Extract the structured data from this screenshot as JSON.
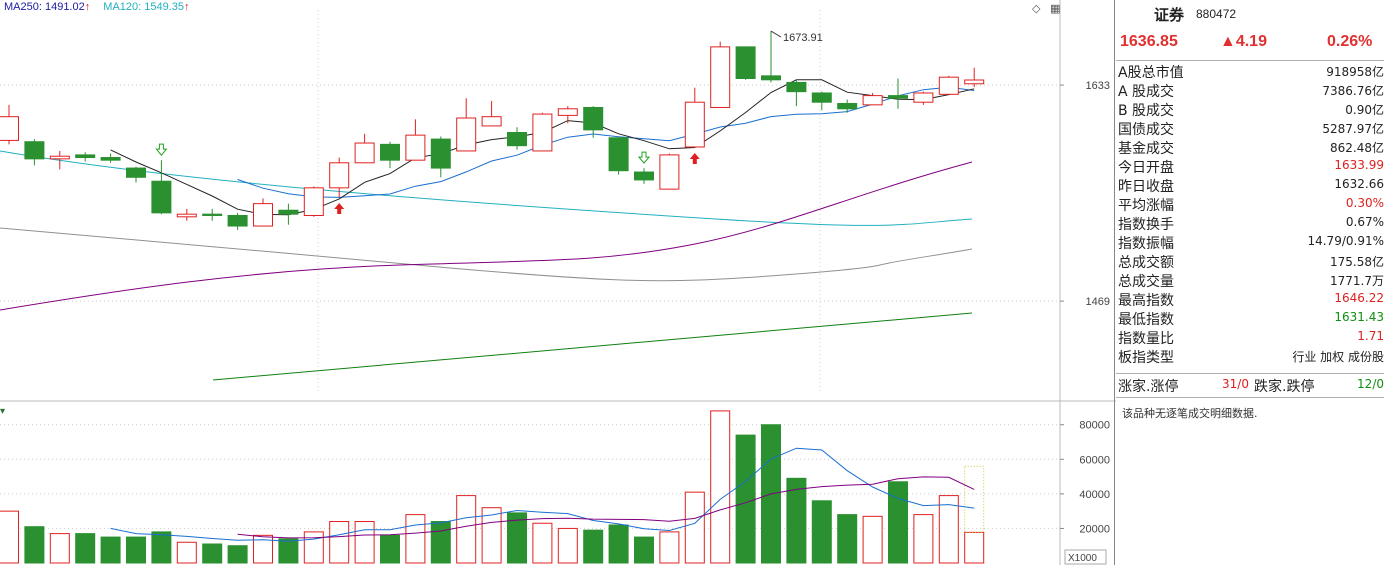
{
  "ma_legend": [
    {
      "text": "MA250: 1491.02",
      "color": "#1a1aa0"
    },
    {
      "text": "MA120: 1549.35",
      "color": "#22b0c0"
    }
  ],
  "price_axis_labels": [
    "1633",
    "1469"
  ],
  "volume_axis_labels": [
    "80000",
    "60000",
    "40000",
    "20000"
  ],
  "volume_unit": "X1000",
  "high_annotation": "1673.91",
  "chart_data": {
    "type": "candlestick",
    "ylim": [
      1400,
      1690
    ],
    "volume_ylim": [
      0,
      92000
    ],
    "candles": [
      {
        "o": 1591,
        "c": 1609,
        "h": 1618,
        "l": 1588,
        "v": 30000
      },
      {
        "o": 1590,
        "c": 1577,
        "h": 1592,
        "l": 1572,
        "v": 21000
      },
      {
        "o": 1577,
        "c": 1579,
        "h": 1583,
        "l": 1569,
        "v": 17000
      },
      {
        "o": 1580,
        "c": 1578,
        "h": 1582,
        "l": 1575,
        "v": 17000
      },
      {
        "o": 1578,
        "c": 1576,
        "h": 1581,
        "l": 1574,
        "v": 15000
      },
      {
        "o": 1570,
        "c": 1563,
        "h": 1571,
        "l": 1559,
        "v": 15000
      },
      {
        "o": 1560,
        "c": 1536,
        "h": 1576,
        "l": 1535,
        "v": 18000
      },
      {
        "o": 1533,
        "c": 1535,
        "h": 1539,
        "l": 1530,
        "v": 12000
      },
      {
        "o": 1535,
        "c": 1534,
        "h": 1539,
        "l": 1530,
        "v": 11000
      },
      {
        "o": 1534,
        "c": 1526,
        "h": 1536,
        "l": 1523,
        "v": 10000
      },
      {
        "o": 1526,
        "c": 1543,
        "h": 1547,
        "l": 1526,
        "v": 16000
      },
      {
        "o": 1538,
        "c": 1535,
        "h": 1543,
        "l": 1527,
        "v": 14000
      },
      {
        "o": 1534,
        "c": 1555,
        "h": 1556,
        "l": 1533,
        "v": 18000
      },
      {
        "o": 1555,
        "c": 1574,
        "h": 1578,
        "l": 1548,
        "v": 24000
      },
      {
        "o": 1574,
        "c": 1589,
        "h": 1596,
        "l": 1574,
        "v": 24000
      },
      {
        "o": 1588,
        "c": 1576,
        "h": 1590,
        "l": 1570,
        "v": 16000
      },
      {
        "o": 1576,
        "c": 1595,
        "h": 1607,
        "l": 1576,
        "v": 28000
      },
      {
        "o": 1592,
        "c": 1570,
        "h": 1594,
        "l": 1563,
        "v": 24000
      },
      {
        "o": 1583,
        "c": 1608,
        "h": 1623,
        "l": 1583,
        "v": 39000
      },
      {
        "o": 1602,
        "c": 1609,
        "h": 1621,
        "l": 1602,
        "v": 32000
      },
      {
        "o": 1597,
        "c": 1587,
        "h": 1601,
        "l": 1584,
        "v": 29000
      },
      {
        "o": 1583,
        "c": 1611,
        "h": 1612,
        "l": 1583,
        "v": 23000
      },
      {
        "o": 1610,
        "c": 1615,
        "h": 1617,
        "l": 1604,
        "v": 20000
      },
      {
        "o": 1616,
        "c": 1599,
        "h": 1617,
        "l": 1593,
        "v": 19000
      },
      {
        "o": 1593,
        "c": 1568,
        "h": 1594,
        "l": 1565,
        "v": 22000
      },
      {
        "o": 1567,
        "c": 1561,
        "h": 1570,
        "l": 1558,
        "v": 15000
      },
      {
        "o": 1554,
        "c": 1580,
        "h": 1581,
        "l": 1554,
        "v": 18000
      },
      {
        "o": 1586,
        "c": 1620,
        "h": 1631,
        "l": 1586,
        "v": 41000
      },
      {
        "o": 1616,
        "c": 1662,
        "h": 1666,
        "l": 1616,
        "v": 88000
      },
      {
        "o": 1662,
        "c": 1638,
        "h": 1662,
        "l": 1637,
        "v": 74000
      },
      {
        "o": 1640,
        "c": 1637,
        "h": 1674,
        "l": 1635,
        "v": 80000
      },
      {
        "o": 1635,
        "c": 1628,
        "h": 1637,
        "l": 1617,
        "v": 49000
      },
      {
        "o": 1627,
        "c": 1620,
        "h": 1628,
        "l": 1614,
        "v": 36000
      },
      {
        "o": 1619,
        "c": 1615,
        "h": 1622,
        "l": 1612,
        "v": 28000
      },
      {
        "o": 1618,
        "c": 1625,
        "h": 1627,
        "l": 1618,
        "v": 27000
      },
      {
        "o": 1625,
        "c": 1623,
        "h": 1638,
        "l": 1615,
        "v": 47000
      },
      {
        "o": 1620,
        "c": 1627,
        "h": 1628,
        "l": 1618,
        "v": 28000
      },
      {
        "o": 1626,
        "c": 1639,
        "h": 1640,
        "l": 1626,
        "v": 39000
      },
      {
        "o": 1634,
        "c": 1636.85,
        "h": 1646.22,
        "l": 1631.43,
        "v": 17717
      }
    ]
  },
  "panel": {
    "title": "证券",
    "code": "880472",
    "price": "1636.85",
    "change": "▲4.19",
    "change_pct": "0.26%",
    "rows": [
      {
        "k": "A股总市值",
        "v": "918958亿",
        "c": ""
      },
      {
        "k": "A 股成交",
        "v": "7386.76亿",
        "c": ""
      },
      {
        "k": "B 股成交",
        "v": "0.90亿",
        "c": ""
      },
      {
        "k": "国债成交",
        "v": "5287.97亿",
        "c": ""
      },
      {
        "k": "基金成交",
        "v": "862.48亿",
        "c": ""
      },
      {
        "k": "今日开盘",
        "v": "1633.99",
        "c": "red"
      },
      {
        "k": "昨日收盘",
        "v": "1632.66",
        "c": ""
      },
      {
        "k": "平均涨幅",
        "v": "0.30%",
        "c": "red"
      },
      {
        "k": "指数换手",
        "v": "0.67%",
        "c": ""
      },
      {
        "k": "指数振幅",
        "v": "14.79/0.91%",
        "c": ""
      },
      {
        "k": "总成交额",
        "v": "175.58亿",
        "c": ""
      },
      {
        "k": "总成交量",
        "v": "1771.7万",
        "c": ""
      },
      {
        "k": "最高指数",
        "v": "1646.22",
        "c": "red"
      },
      {
        "k": "最低指数",
        "v": "1631.43",
        "c": "green"
      },
      {
        "k": "指数量比",
        "v": "1.71",
        "c": "red"
      },
      {
        "k": "板指类型",
        "v": "行业 加权 成份股",
        "c": ""
      }
    ],
    "up_label": "涨家.涨停",
    "up_value": "31/0",
    "down_label": "跌家.跌停",
    "down_value": "12/0",
    "note": "该品种无逐笔成交明细数据."
  }
}
